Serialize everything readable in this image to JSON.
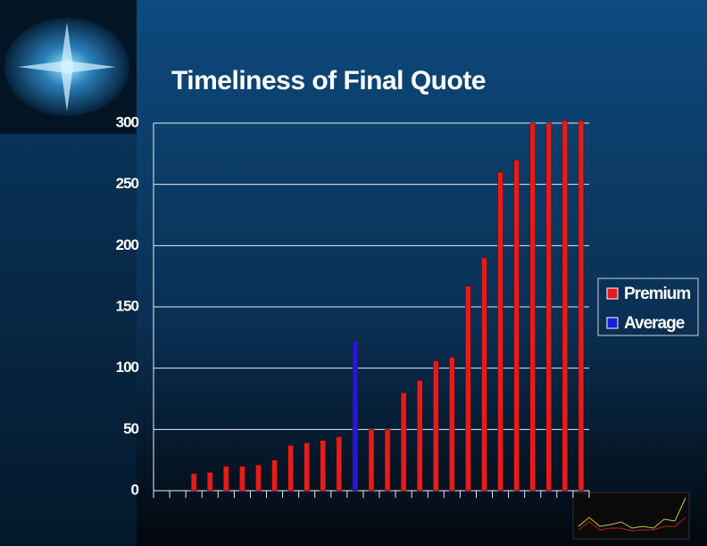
{
  "chart_data": {
    "type": "bar",
    "title": "Timeliness of Final Quote",
    "categories": [
      null,
      null,
      null,
      null,
      null,
      null,
      null,
      null,
      null,
      null,
      null,
      null,
      null,
      null,
      null,
      null,
      null,
      null,
      null,
      null,
      null,
      null,
      null,
      null,
      null,
      null,
      null
    ],
    "series": [
      {
        "name": "Premium",
        "color": "#e41c1c",
        "values": [
          null,
          null,
          14,
          15,
          20,
          20,
          21,
          25,
          37,
          39,
          41,
          44,
          null,
          50,
          50,
          80,
          90,
          106,
          109,
          167,
          190,
          260,
          270,
          300,
          300,
          302,
          302
        ]
      },
      {
        "name": "Average",
        "color": "#1a1ae0",
        "values": [
          null,
          null,
          null,
          null,
          null,
          null,
          null,
          null,
          null,
          null,
          null,
          null,
          122,
          null,
          null,
          null,
          null,
          null,
          null,
          null,
          null,
          null,
          null,
          null,
          null,
          null,
          null
        ]
      }
    ],
    "ylim": [
      0,
      300
    ],
    "yticks": [
      0,
      50,
      100,
      150,
      200,
      250,
      300
    ],
    "grid": true
  }
}
